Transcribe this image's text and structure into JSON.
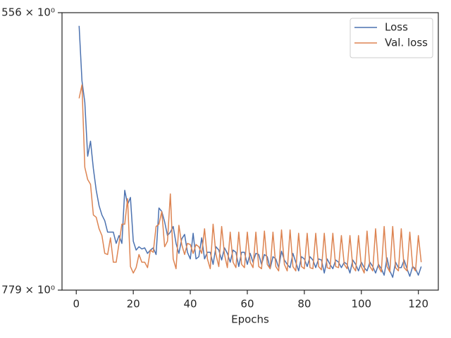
{
  "chart_data": {
    "type": "line",
    "xlabel": "Epochs",
    "yscale": "log",
    "legend": "upper right",
    "x": [
      1,
      2,
      3,
      4,
      5,
      6,
      7,
      8,
      9,
      10,
      11,
      12,
      13,
      14,
      15,
      16,
      17,
      18,
      19,
      20,
      21,
      22,
      23,
      24,
      25,
      26,
      27,
      28,
      29,
      30,
      31,
      32,
      33,
      34,
      35,
      36,
      37,
      38,
      39,
      40,
      41,
      42,
      43,
      44,
      45,
      46,
      47,
      48,
      49,
      50,
      51,
      52,
      53,
      54,
      55,
      56,
      57,
      58,
      59,
      60,
      61,
      62,
      63,
      64,
      65,
      66,
      67,
      68,
      69,
      70,
      71,
      72,
      73,
      74,
      75,
      76,
      77,
      78,
      79,
      80,
      81,
      82,
      83,
      84,
      85,
      86,
      87,
      88,
      89,
      90,
      91,
      92,
      93,
      94,
      95,
      96,
      97,
      98,
      99,
      100,
      101,
      102,
      103,
      104,
      105,
      106,
      107,
      108,
      109,
      110,
      111,
      112,
      113,
      114,
      115,
      116,
      117,
      118,
      119,
      120,
      121
    ],
    "series": [
      {
        "name": "Loss",
        "color": "#4c72b0",
        "values": [
          565,
          604,
          620,
          662,
          650,
          672,
          690,
          703,
          711,
          716,
          726,
          726,
          726,
          736,
          729,
          736,
          690,
          702,
          696,
          734,
          742,
          739,
          741,
          740,
          745,
          742,
          740,
          746,
          705,
          708,
          717,
          729,
          726,
          721,
          736,
          745,
          732,
          728,
          744,
          750,
          727,
          750,
          748,
          731,
          750,
          744,
          744,
          755,
          739,
          742,
          751,
          740,
          745,
          753,
          742,
          744,
          757,
          744,
          744,
          755,
          745,
          753,
          745,
          746,
          755,
          746,
          748,
          759,
          748,
          750,
          758,
          743,
          751,
          755,
          758,
          745,
          753,
          761,
          748,
          750,
          757,
          748,
          751,
          758,
          750,
          751,
          763,
          750,
          755,
          759,
          751,
          753,
          758,
          753,
          755,
          763,
          751,
          755,
          761,
          753,
          758,
          761,
          753,
          757,
          763,
          755,
          759,
          765,
          749,
          761,
          767,
          753,
          758,
          758,
          751,
          759,
          766,
          757,
          759,
          765,
          757
        ]
      },
      {
        "name": "Val. loss",
        "color": "#dd8452",
        "values": [
          617,
          607,
          671,
          681,
          685,
          711,
          713,
          723,
          729,
          745,
          746,
          731,
          753,
          753,
          736,
          719,
          719,
          697,
          757,
          763,
          758,
          746,
          753,
          753,
          758,
          742,
          744,
          721,
          719,
          708,
          739,
          734,
          693,
          750,
          759,
          720,
          737,
          746,
          736,
          737,
          745,
          737,
          739,
          745,
          723,
          750,
          759,
          719,
          746,
          757,
          721,
          746,
          758,
          726,
          753,
          758,
          726,
          755,
          758,
          726,
          753,
          758,
          726,
          757,
          759,
          725,
          755,
          759,
          726,
          757,
          761,
          724,
          755,
          761,
          724,
          757,
          761,
          727,
          757,
          759,
          727,
          758,
          759,
          727,
          757,
          760,
          727,
          758,
          759,
          727,
          757,
          758,
          729,
          755,
          759,
          729,
          757,
          761,
          729,
          757,
          763,
          725,
          757,
          761,
          723,
          757,
          762,
          721,
          757,
          762,
          721,
          758,
          761,
          723,
          758,
          761,
          726,
          757,
          761,
          729,
          753
        ]
      }
    ],
    "xlim": [
      -5,
      127
    ],
    "xticks": [
      0,
      20,
      40,
      60,
      80,
      100,
      120
    ],
    "ylim": [
      779,
      556
    ],
    "yticks": [
      {
        "value": 556,
        "label": "556 × 10⁰"
      },
      {
        "value": 779,
        "label": "779 × 10⁰"
      }
    ]
  }
}
